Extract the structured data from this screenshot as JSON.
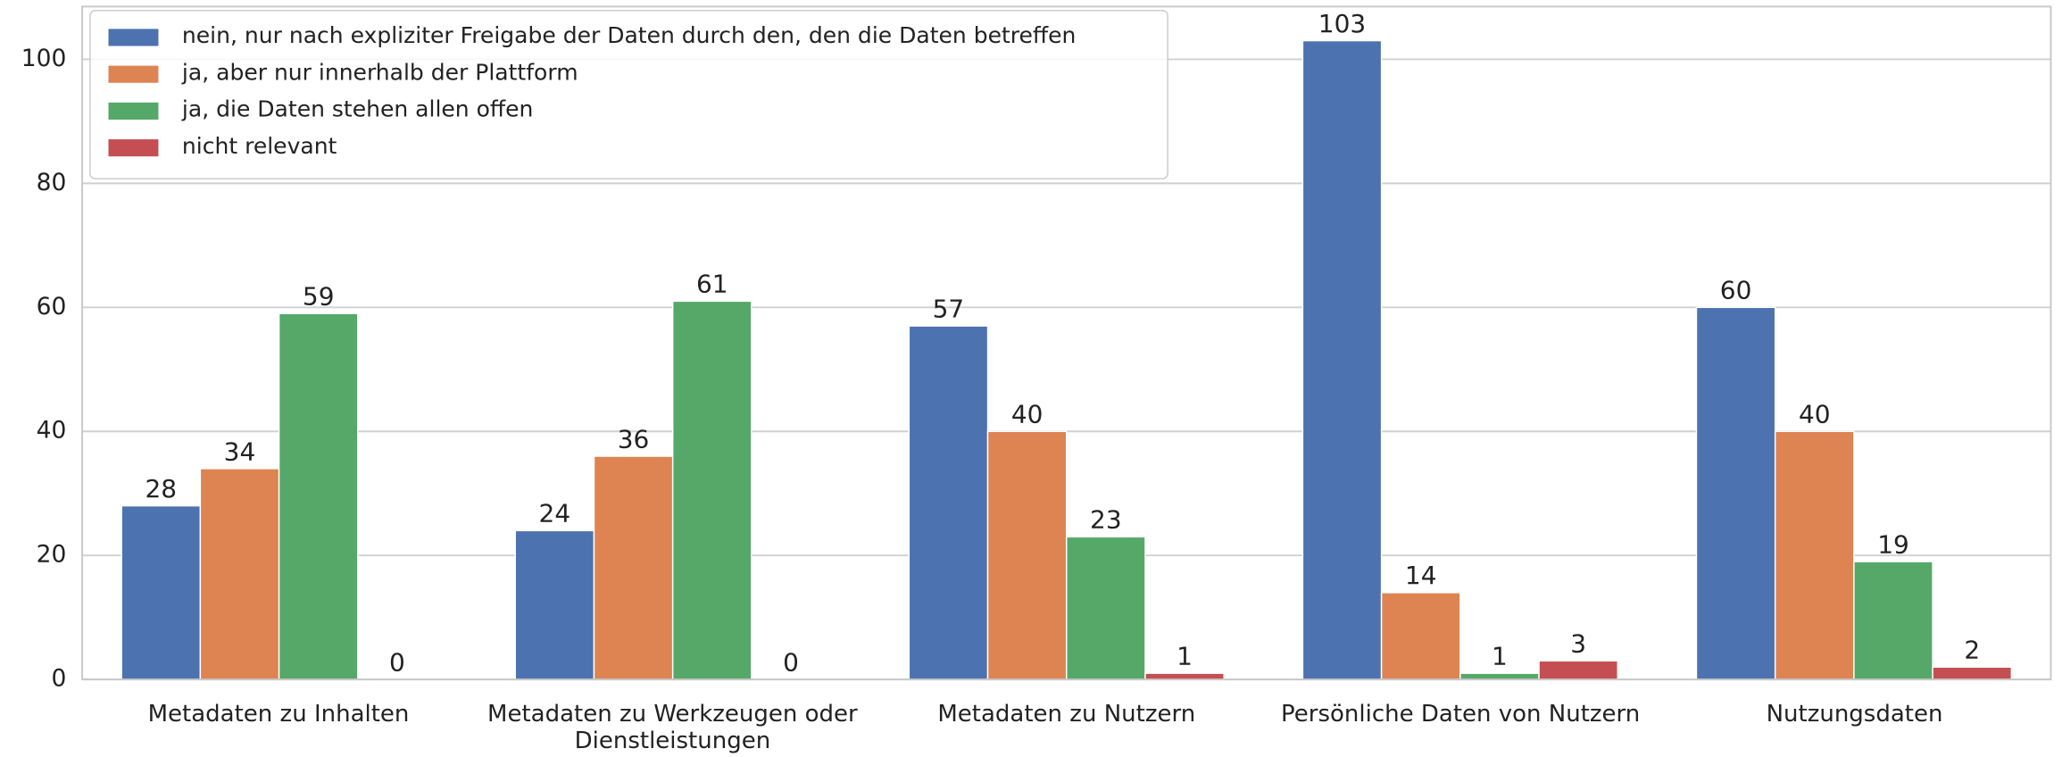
{
  "chart_data": {
    "type": "bar",
    "categories": [
      "Metadaten zu Inhalten",
      "Metadaten zu Werkzeugen oder Dienstleistungen",
      "Metadaten zu Nutzern",
      "Persönliche Daten von Nutzern",
      "Nutzungsdaten"
    ],
    "series": [
      {
        "name": "nein, nur nach expliziter Freigabe der Daten durch den, den die Daten betreffen",
        "color": "#4c72b0",
        "values": [
          28,
          24,
          57,
          103,
          60
        ]
      },
      {
        "name": "ja, aber nur innerhalb der Plattform",
        "color": "#dd8452",
        "values": [
          34,
          36,
          40,
          14,
          40
        ]
      },
      {
        "name": "ja, die Daten stehen allen offen",
        "color": "#55a868",
        "values": [
          59,
          61,
          23,
          1,
          19
        ]
      },
      {
        "name": "nicht relevant",
        "color": "#c44e52",
        "values": [
          0,
          0,
          1,
          3,
          2
        ]
      }
    ],
    "ylim": [
      0,
      108.5
    ],
    "yticks": [
      0,
      20,
      40,
      60,
      80,
      100
    ],
    "grid": true,
    "legend": "upper left"
  }
}
